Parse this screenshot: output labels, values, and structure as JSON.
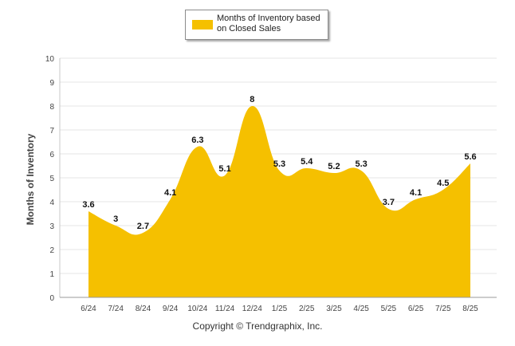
{
  "chart_data": {
    "type": "area",
    "title": "",
    "xlabel": "",
    "ylabel": "Months of Inventory",
    "ylim": [
      0,
      10
    ],
    "y_ticks": [
      "0",
      "1",
      "2",
      "3",
      "4",
      "5",
      "6",
      "7",
      "8",
      "9",
      "10"
    ],
    "categories": [
      "6/24",
      "7/24",
      "8/24",
      "9/24",
      "10/24",
      "11/24",
      "12/24",
      "1/25",
      "2/25",
      "3/25",
      "4/25",
      "5/25",
      "6/25",
      "7/25",
      "8/25"
    ],
    "series": [
      {
        "name": "Months of Inventory based on Closed Sales",
        "color": "#f5c000",
        "values": [
          3.6,
          3,
          2.7,
          4.1,
          6.3,
          5.1,
          8,
          5.3,
          5.4,
          5.2,
          5.3,
          3.7,
          4.1,
          4.5,
          5.6
        ],
        "labels": [
          "3.6",
          "3",
          "2.7",
          "4.1",
          "6.3",
          "5.1",
          "8",
          "5.3",
          "5.4",
          "5.2",
          "5.3",
          "3.7",
          "4.1",
          "4.5",
          "5.6"
        ]
      }
    ],
    "grid": true,
    "legend": "top-center"
  },
  "legend": {
    "label": "Months of Inventory based on Closed Sales"
  },
  "footer": {
    "copyright": "Copyright © Trendgraphix, Inc."
  }
}
